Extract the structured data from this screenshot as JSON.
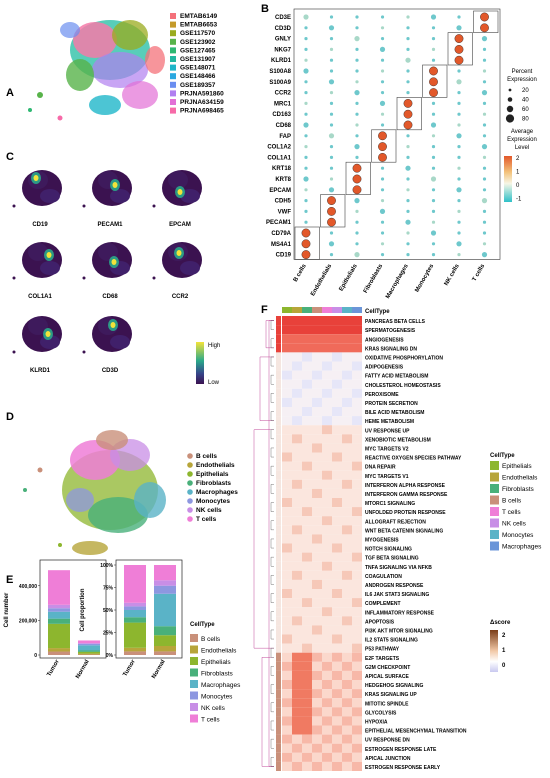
{
  "panels": {
    "A": {
      "label": "A",
      "legend": [
        {
          "name": "EMTAB6149",
          "color": "#f4717a"
        },
        {
          "name": "EMTAB6653",
          "color": "#c49a2a"
        },
        {
          "name": "GSE117570",
          "color": "#9aab1e"
        },
        {
          "name": "GSE123902",
          "color": "#58b34a"
        },
        {
          "name": "GSE127465",
          "color": "#2eb872"
        },
        {
          "name": "GSE131907",
          "color": "#22b8a0"
        },
        {
          "name": "GSE148071",
          "color": "#1fb6c9"
        },
        {
          "name": "GSE148466",
          "color": "#2aa8e0"
        },
        {
          "name": "GSE189357",
          "color": "#6b8ef0"
        },
        {
          "name": "PRJNA591860",
          "color": "#b07ff0"
        },
        {
          "name": "PRJNA634159",
          "color": "#e26fd6"
        },
        {
          "name": "PRJNA698465",
          "color": "#f76aa8"
        }
      ]
    },
    "B": {
      "label": "B",
      "legend_title_size": "Percent\nExpression",
      "size_levels": [
        "20",
        "40",
        "60",
        "80"
      ],
      "legend_title_color": "Average\nExpression\nLevel",
      "color_ticks": [
        "2",
        "1",
        "0",
        "-1"
      ]
    },
    "C": {
      "label": "C",
      "genes": [
        "CD19",
        "PECAM1",
        "EPCAM",
        "COL1A1",
        "CD68",
        "CCR2",
        "KLRD1",
        "CD3D"
      ],
      "legend_high": "High",
      "legend_low": "Low"
    },
    "D": {
      "label": "D",
      "legend": [
        {
          "name": "B cells",
          "color": "#c9907a"
        },
        {
          "name": "Endothelials",
          "color": "#b7a53a"
        },
        {
          "name": "Epithelials",
          "color": "#8db62e"
        },
        {
          "name": "Fibroblasts",
          "color": "#49b07a"
        },
        {
          "name": "Macrophages",
          "color": "#5ab3c7"
        },
        {
          "name": "Monocytes",
          "color": "#8d97e0"
        },
        {
          "name": "NK cells",
          "color": "#c88ee6"
        },
        {
          "name": "T cells",
          "color": "#ef7ed7"
        }
      ]
    },
    "E": {
      "label": "E",
      "ylabel_left": "Cell number",
      "ylabel_right": "Cell proportion",
      "yticks_left": [
        "0",
        "200,000",
        "400,000"
      ],
      "yticks_right": [
        "0%",
        "25%",
        "50%",
        "75%",
        "100%"
      ],
      "legend_title": "CellType"
    },
    "F": {
      "label": "F",
      "col_label": "CellType",
      "legend_title": "CellType",
      "legend": [
        {
          "name": "Epithelials",
          "color": "#8db62e"
        },
        {
          "name": "Endothelials",
          "color": "#b7a53a"
        },
        {
          "name": "Fibroblasts",
          "color": "#49b07a"
        },
        {
          "name": "B cells",
          "color": "#c9907a"
        },
        {
          "name": "T cells",
          "color": "#ef7ed7"
        },
        {
          "name": "NK cells",
          "color": "#c88ee6"
        },
        {
          "name": "Monocytes",
          "color": "#5ab3c7"
        },
        {
          "name": "Macrophages",
          "color": "#6b95d8"
        }
      ],
      "score_title": "Δscore",
      "score_ticks": [
        "2",
        "1",
        "0"
      ]
    }
  },
  "chart_data": [
    {
      "type": "scatter",
      "panel": "B",
      "title": "",
      "x_categories": [
        "B cells",
        "Endothelials",
        "Epithelials",
        "Fibroblasts",
        "Macrophages",
        "Monocytes",
        "NK cells",
        "T cells"
      ],
      "y_categories": [
        "CD3E",
        "CD3D",
        "GNLY",
        "NKG7",
        "KLRD1",
        "S100A8",
        "S100A9",
        "CCR2",
        "MRC1",
        "CD163",
        "CD68",
        "FAP",
        "COL1A2",
        "COL1A1",
        "KRT18",
        "KRT8",
        "EPCAM",
        "CDH5",
        "VWF",
        "PECAM1",
        "CD79A",
        "MS4A1",
        "CD19"
      ],
      "highlight": [
        [
          7,
          0
        ],
        [
          7,
          1
        ],
        [
          6,
          2
        ],
        [
          6,
          3
        ],
        [
          6,
          4
        ],
        [
          5,
          5
        ],
        [
          5,
          6
        ],
        [
          5,
          7
        ],
        [
          4,
          8
        ],
        [
          4,
          9
        ],
        [
          4,
          10
        ],
        [
          3,
          11
        ],
        [
          3,
          12
        ],
        [
          3,
          13
        ],
        [
          2,
          14
        ],
        [
          2,
          15
        ],
        [
          2,
          16
        ],
        [
          1,
          17
        ],
        [
          1,
          18
        ],
        [
          1,
          19
        ],
        [
          0,
          20
        ],
        [
          0,
          21
        ],
        [
          0,
          22
        ]
      ]
    },
    {
      "type": "bar",
      "panel": "E-left",
      "categories": [
        "Tumor",
        "Normal"
      ],
      "series": [
        {
          "name": "B cells",
          "values": [
            20000,
            3000
          ]
        },
        {
          "name": "Endothelials",
          "values": [
            20000,
            5000
          ]
        },
        {
          "name": "Epithelials",
          "values": [
            140000,
            10000
          ]
        },
        {
          "name": "Fibroblasts",
          "values": [
            30000,
            8000
          ]
        },
        {
          "name": "Macrophages",
          "values": [
            40000,
            30000
          ]
        },
        {
          "name": "Monocytes",
          "values": [
            20000,
            8000
          ]
        },
        {
          "name": "NK cells",
          "values": [
            20000,
            5000
          ]
        },
        {
          "name": "T cells",
          "values": [
            200000,
            15000
          ]
        }
      ],
      "ylim": [
        0,
        520000
      ]
    },
    {
      "type": "bar",
      "panel": "E-right",
      "categories": [
        "Tumor",
        "Normal"
      ],
      "series": [
        {
          "name": "B cells",
          "values": [
            0.04,
            0.04
          ]
        },
        {
          "name": "Endothelials",
          "values": [
            0.04,
            0.06
          ]
        },
        {
          "name": "Epithelials",
          "values": [
            0.28,
            0.12
          ]
        },
        {
          "name": "Fibroblasts",
          "values": [
            0.06,
            0.1
          ]
        },
        {
          "name": "Macrophages",
          "values": [
            0.08,
            0.36
          ]
        },
        {
          "name": "Monocytes",
          "values": [
            0.04,
            0.09
          ]
        },
        {
          "name": "NK cells",
          "values": [
            0.04,
            0.06
          ]
        },
        {
          "name": "T cells",
          "values": [
            0.42,
            0.17
          ]
        }
      ],
      "ylim": [
        0,
        1
      ]
    },
    {
      "type": "heatmap",
      "panel": "F",
      "rows": [
        "PANCREAS BETA CELLS",
        "SPERMATOGENESIS",
        "ANGIOGENESIS",
        "KRAS SIGNALING DN",
        "OXIDATIVE PHOSPHORYLATION",
        "ADIPOGENESIS",
        "FATTY ACID METABOLISM",
        "CHOLESTEROL HOMEOSTASIS",
        "PEROXISOME",
        "PROTEIN SECRETION",
        "BILE ACID METABOLISM",
        "HEME METABOLISM",
        "UV RESPONSE UP",
        "XENOBIOTIC METABOLISM",
        "MYC TARGETS V2",
        "REACTIVE OXYGEN SPECIES PATHWAY",
        "DNA REPAIR",
        "MYC TARGETS V1",
        "INTERFERON ALPHA RESPONSE",
        "INTERFERON GAMMA RESPONSE",
        "MTORC1 SIGNALING",
        "UNFOLDED PROTEIN RESPONSE",
        "ALLOGRAFT REJECTION",
        "WNT BETA CATENIN SIGNALING",
        "MYOGENESIS",
        "NOTCH SIGNALING",
        "TGF BETA SIGNALING",
        "TNFA SIGNALING VIA NFKB",
        "COAGULATION",
        "ANDROGEN RESPONSE",
        "IL6 JAK STAT3 SIGNALING",
        "COMPLEMENT",
        "INFLAMMATORY RESPONSE",
        "APOPTOSIS",
        "PI3K AKT MTOR SIGNALING",
        "IL2 STAT5 SIGNALING",
        "P53 PATHWAY",
        "E2F TARGETS",
        "G2M CHECKPOINT",
        "APICAL SURFACE",
        "HEDGEHOG SIGNALING",
        "KRAS SIGNALING UP",
        "MITOTIC SPINDLE",
        "GLYCOLYSIS",
        "HYPOXIA",
        "EPITHELIAL MESENCHYMAL TRANSITION",
        "UV RESPONSE DN",
        "ESTROGEN RESPONSE LATE",
        "APICAL JUNCTION",
        "ESTROGEN RESPONSE EARLY"
      ],
      "columns": [
        "Epithelials",
        "Endothelials",
        "Fibroblasts",
        "B cells",
        "T cells",
        "NK cells",
        "Monocytes",
        "Macrophages"
      ]
    }
  ]
}
